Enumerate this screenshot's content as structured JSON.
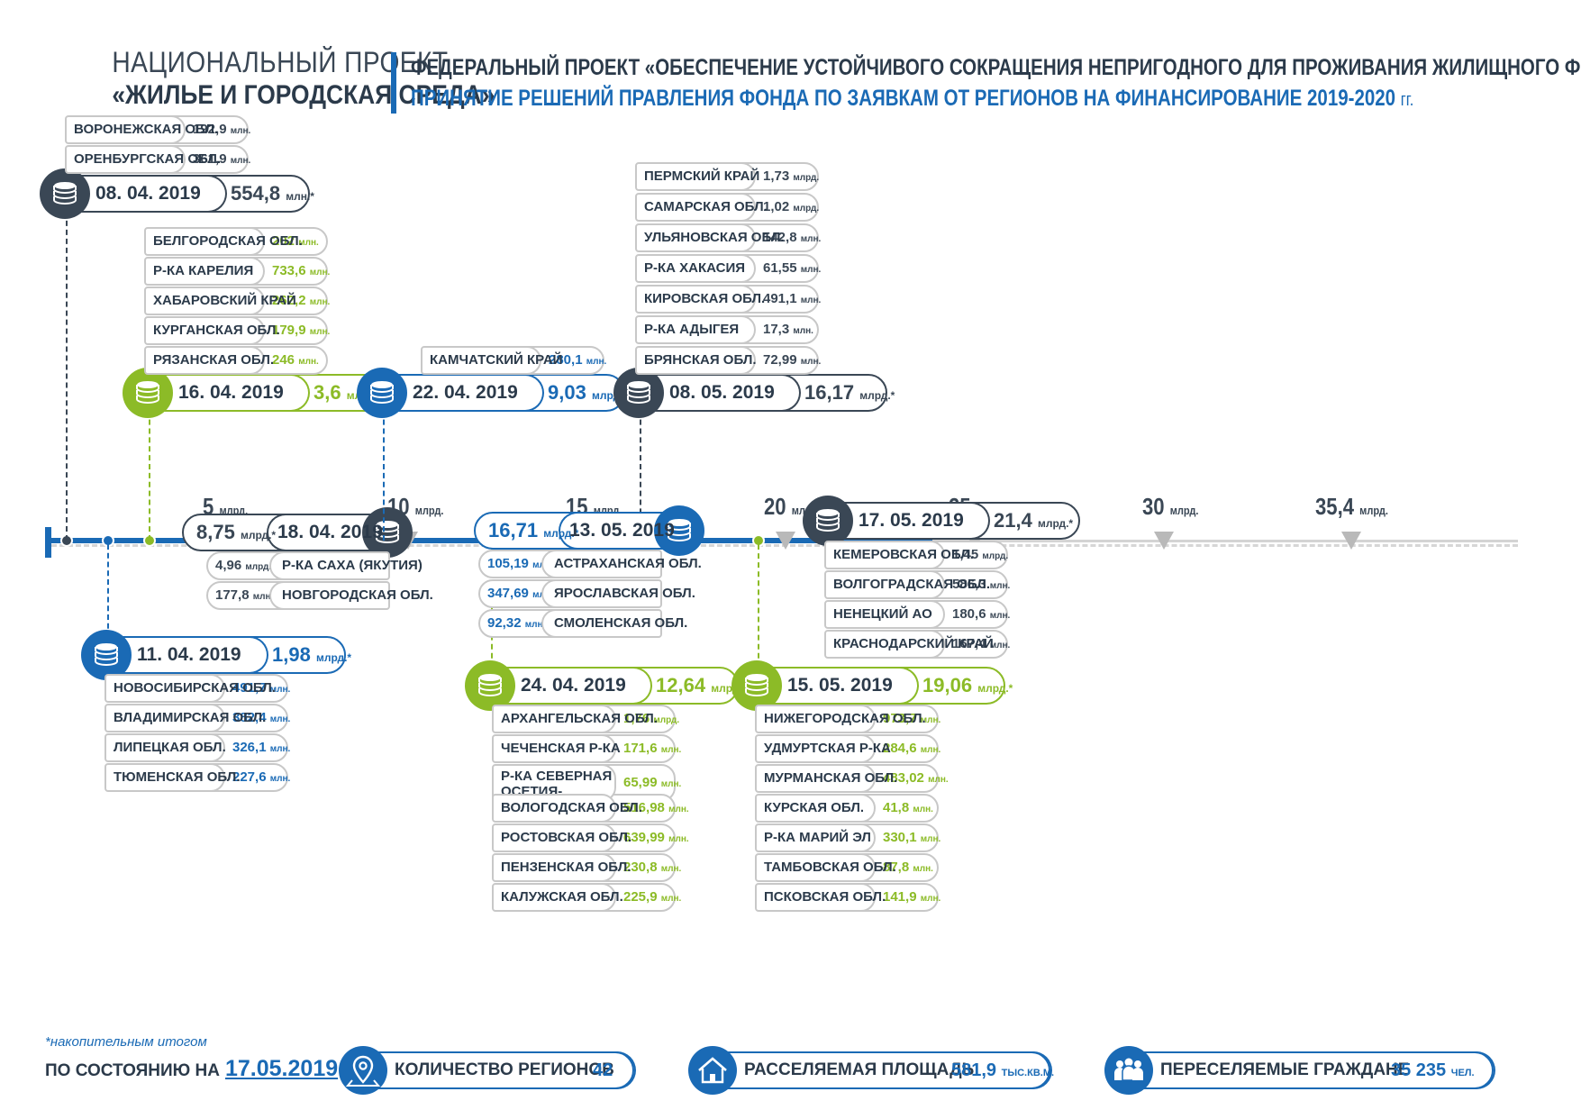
{
  "header": {
    "left_line1": "НАЦИОНАЛЬНЫЙ ПРОЕКТ",
    "left_line2": "«ЖИЛЬЕ И ГОРОДСКАЯ СРЕДА»",
    "right_line1": "ФЕДЕРАЛЬНЫЙ ПРОЕКТ «ОБЕСПЕЧЕНИЕ УСТОЙЧИВОГО СОКРАЩЕНИЯ  НЕПРИГОДНОГО ДЛЯ ПРОЖИВАНИЯ ЖИЛИЩНОГО ФОНДА»",
    "right_line2": "ПРИНЯТИЕ  РЕШЕНИЙ ПРАВЛЕНИЯ ФОНДА ПО ЗАЯВКАМ  ОТ РЕГИОНОВ НА ФИНАНСИРОВАНИЕ 2019-2020",
    "right_line2_suffix": "гг."
  },
  "scale": [
    {
      "value": "5",
      "unit": "млрд."
    },
    {
      "value": "10",
      "unit": "млрд."
    },
    {
      "value": "15",
      "unit": "млрд."
    },
    {
      "value": "20",
      "unit": "млрд."
    },
    {
      "value": "25",
      "unit": "млрд."
    },
    {
      "value": "30",
      "unit": "млрд."
    },
    {
      "value": "35,4",
      "unit": "млрд."
    }
  ],
  "events": {
    "e0804": {
      "date": "08. 04. 2019",
      "amount": "554,8",
      "unit": "млн.*",
      "color": "#3a4755",
      "regions": [
        {
          "name": "ВОРОНЕЖСКАЯ ОБЛ.",
          "value": "192,9",
          "unit": "млн."
        },
        {
          "name": "ОРЕНБУРГСКАЯ ОБЛ.",
          "value": "361,9",
          "unit": "млн."
        }
      ]
    },
    "e1104": {
      "date": "11. 04. 2019",
      "amount": "1,98",
      "unit": "млрд.*",
      "color": "#1a6ab5",
      "regions": [
        {
          "name": "НОВОСИБИРСКАЯ ОБЛ.",
          "value": "491,7",
          "unit": "млн."
        },
        {
          "name": "ВЛАДИМИРСКАЯ ОБЛ.",
          "value": "382,4",
          "unit": "млн."
        },
        {
          "name": "ЛИПЕЦКАЯ ОБЛ.",
          "value": "326,1",
          "unit": "млн."
        },
        {
          "name": "ТЮМЕНСКАЯ  ОБЛ.",
          "value": "227,6",
          "unit": "млн."
        }
      ]
    },
    "e1604": {
      "date": "16. 04. 2019",
      "amount": "3,6",
      "unit": "млрд.*",
      "color": "#8cbb27",
      "regions": [
        {
          "name": "БЕЛГОРОДСКАЯ ОБЛ.",
          "value": "202",
          "unit": "млн."
        },
        {
          "name": "Р-КА КАРЕЛИЯ",
          "value": "733,6",
          "unit": "млн."
        },
        {
          "name": "ХАБАРОВСКИЙ КРАЙ",
          "value": "262,2",
          "unit": "млн."
        },
        {
          "name": "КУРГАНСКАЯ ОБЛ.",
          "value": "179,9",
          "unit": "млн."
        },
        {
          "name": "РЯЗАНСКАЯ ОБЛ.",
          "value": "246",
          "unit": "млн."
        }
      ]
    },
    "e1804": {
      "date": "18. 04. 2019",
      "amount": "8,75",
      "unit": "млрд.*",
      "color": "#3a4755",
      "regions": [
        {
          "name": "Р-КА САХА (ЯКУТИЯ)",
          "value": "4,96",
          "unit": "млрд."
        },
        {
          "name": "НОВГОРОДСКАЯ ОБЛ.",
          "value": "177,8",
          "unit": "млн."
        }
      ]
    },
    "e2204": {
      "date": "22. 04. 2019",
      "amount": "9,03",
      "unit": "млрд.*",
      "color": "#1a6ab5",
      "regions": [
        {
          "name": "КАМЧАТСКИЙ КРАЙ",
          "value": "280,1",
          "unit": "млн."
        }
      ]
    },
    "e2404": {
      "date": "24. 04. 2019",
      "amount": "12,64",
      "unit": "млрд.*",
      "color": "#8cbb27",
      "regions": [
        {
          "name": "АРХАНГЕЛЬСКАЯ ОБЛ.",
          "value": "1,76",
          "unit": "млрд."
        },
        {
          "name": "ЧЕЧЕНСКАЯ Р-КА",
          "value": "171,6",
          "unit": "млн."
        },
        {
          "name": "Р-КА СЕВЕРНАЯ ОСЕТИЯ-АЛАНИЯ",
          "value": "65,99",
          "unit": "млн."
        },
        {
          "name": "ВОЛОГОДСКАЯ ОБЛ.",
          "value": "516,98",
          "unit": "млн."
        },
        {
          "name": "РОСТОВСКАЯ ОБЛ.",
          "value": "639,99",
          "unit": "млн."
        },
        {
          "name": "ПЕНЗЕНСКАЯ ОБЛ.",
          "value": "230,8",
          "unit": "млн."
        },
        {
          "name": "КАЛУЖСКАЯ  ОБЛ.",
          "value": "225,9",
          "unit": "млн."
        }
      ]
    },
    "e0805": {
      "date": "08. 05. 2019",
      "amount": "16,17",
      "unit": "млрд.*",
      "color": "#3a4755",
      "regions": [
        {
          "name": "ПЕРМСКИЙ КРАЙ",
          "value": "1,73",
          "unit": "млрд."
        },
        {
          "name": "САМАРСКАЯ ОБЛ.",
          "value": "1,02",
          "unit": "млрд."
        },
        {
          "name": "УЛЬЯНОВСКАЯ ОБЛ.",
          "value": "142,8",
          "unit": "млн."
        },
        {
          "name": "Р-КА ХАКАСИЯ",
          "value": "61,55",
          "unit": "млн."
        },
        {
          "name": "КИРОВСКАЯ ОБЛ.",
          "value": "491,1",
          "unit": "млн."
        },
        {
          "name": "Р-КА АДЫГЕЯ",
          "value": "17,3",
          "unit": "млн."
        },
        {
          "name": "БРЯНСКАЯ ОБЛ.",
          "value": "72,99",
          "unit": "млн."
        }
      ]
    },
    "e1305": {
      "date": "13. 05. 2019",
      "amount": "16,71",
      "unit": "млрд.*",
      "color": "#1a6ab5",
      "regions": [
        {
          "name": "АСТРАХАНСКАЯ ОБЛ.",
          "value": "105,19",
          "unit": "млн."
        },
        {
          "name": "ЯРОСЛАВСКАЯ ОБЛ.",
          "value": "347,69",
          "unit": "млн."
        },
        {
          "name": "СМОЛЕНСКАЯ ОБЛ.",
          "value": "92,32",
          "unit": "млн."
        }
      ]
    },
    "e1505": {
      "date": "15. 05. 2019",
      "amount": "19,06",
      "unit": "млрд.*",
      "color": "#8cbb27",
      "regions": [
        {
          "name": "НИЖЕГОРОДСКАЯ ОБЛ.",
          "value": "973,7",
          "unit": "млн."
        },
        {
          "name": "УДМУРТСКАЯ Р-КА",
          "value": "284,6",
          "unit": "млн."
        },
        {
          "name": "МУРМАНСКАЯ ОБЛ.",
          "value": "483,02",
          "unit": "млн."
        },
        {
          "name": "КУРСКАЯ ОБЛ.",
          "value": "41,8",
          "unit": "млн."
        },
        {
          "name": "Р-КА МАРИЙ ЭЛ",
          "value": "330,1",
          "unit": "млн."
        },
        {
          "name": "ТАМБОВСКАЯ ОБЛ.",
          "value": "87,8",
          "unit": "млн."
        },
        {
          "name": "ПСКОВСКАЯ ОБЛ.",
          "value": "141,9",
          "unit": "млн."
        }
      ]
    },
    "e1705": {
      "date": "17. 05. 2019",
      "amount": "21,4",
      "unit": "млрд.*",
      "color": "#3a4755",
      "regions": [
        {
          "name": "КЕМЕРОВСКАЯ ОБЛ.",
          "value": "1,45",
          "unit": "млрд."
        },
        {
          "name": "ВОЛГОГРАДСКАЯ ОБЛ.",
          "value": "586,3",
          "unit": "млн."
        },
        {
          "name": "НЕНЕЦКИЙ АО",
          "value": "180,6",
          "unit": "млн."
        },
        {
          "name": "КРАСНОДАРСКИЙ КРАЙ",
          "value": "167,4",
          "unit": "млн."
        }
      ]
    }
  },
  "footer": {
    "note": "*накопительным итогом",
    "status_label": "ПО СОСТОЯНИЮ НА",
    "status_date": "17.05.2019",
    "regions_label": "КОЛИЧЕСТВО РЕГИОНОВ",
    "regions_value": "42",
    "area_label": "РАССЕЛЯЕМАЯ ПЛОЩАДЬ",
    "area_value": "581,9",
    "area_unit": "ТЫС.КВ.М.",
    "people_label": "ПЕРЕСЕЛЯЕМЫЕ ГРАЖДАНЕ",
    "people_value": "35 235",
    "people_unit": "ЧЕЛ."
  },
  "colors": {
    "blue": "#1a6ab5",
    "dark": "#3a4755",
    "green": "#8cbb27",
    "grey": "#b9b9b9"
  },
  "icons": {
    "coin": "coin-stack-icon",
    "regions": "map-pin-icon",
    "area": "house-icon",
    "people": "people-icon"
  }
}
